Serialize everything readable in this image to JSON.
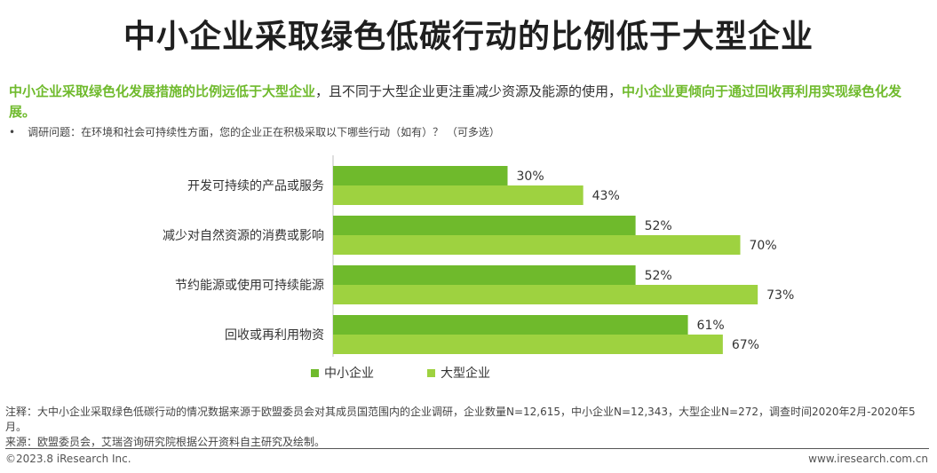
{
  "title": "中小企业采取绿色低碳行动的比例低于大型企业",
  "summary": {
    "part1": "中小企业采取绿色化发展措施的比例远低于大型企业",
    "part2": "，且不同于大型企业更注重减少资源及能源的使用，",
    "part3": "中小企业更倾向于通过回收再利用实现绿色化发展",
    "part4": "。"
  },
  "question": {
    "bullet": "•",
    "text": "调研问题：在环境和社会可持续性方面，您的企业正在积极采取以下哪些行动（如有）？ （可多选）"
  },
  "chart_data": {
    "type": "bar",
    "orientation": "horizontal",
    "categories": [
      "开发可持续的产品或服务",
      "减少对自然资源的消费或影响",
      "节约能源或使用可持续能源",
      "回收或再利用物资"
    ],
    "series": [
      {
        "name": "中小企业",
        "values": [
          30,
          52,
          52,
          61
        ],
        "labels": [
          "30%",
          "52%",
          "52%",
          "61%"
        ],
        "color": "#6fba2c"
      },
      {
        "name": "大型企业",
        "values": [
          43,
          70,
          73,
          67
        ],
        "labels": [
          "43%",
          "70%",
          "73%",
          "67%"
        ],
        "color": "#9ed240"
      }
    ],
    "xlim": [
      0,
      100
    ],
    "legend_position": "bottom",
    "grid": false
  },
  "legend": [
    {
      "marker": "■",
      "label": "中小企业",
      "color": "#6fba2c"
    },
    {
      "marker": "■",
      "label": "大型企业",
      "color": "#9ed240"
    }
  ],
  "note": {
    "line1": "注释：大中小企业采取绿色低碳行动的情况数据来源于欧盟委员会对其成员国范围内的企业调研，企业数量N=12,615，中小企业N=12,343，大型企业N=272，调查时间2020年2月-2020年5月。",
    "line2": "来源：欧盟委员会，艾瑞咨询研究院根据公开资料自主研究及绘制。"
  },
  "footer": {
    "left": "©2023.8 iResearch Inc.",
    "right": "www.iresearch.com.cn"
  }
}
